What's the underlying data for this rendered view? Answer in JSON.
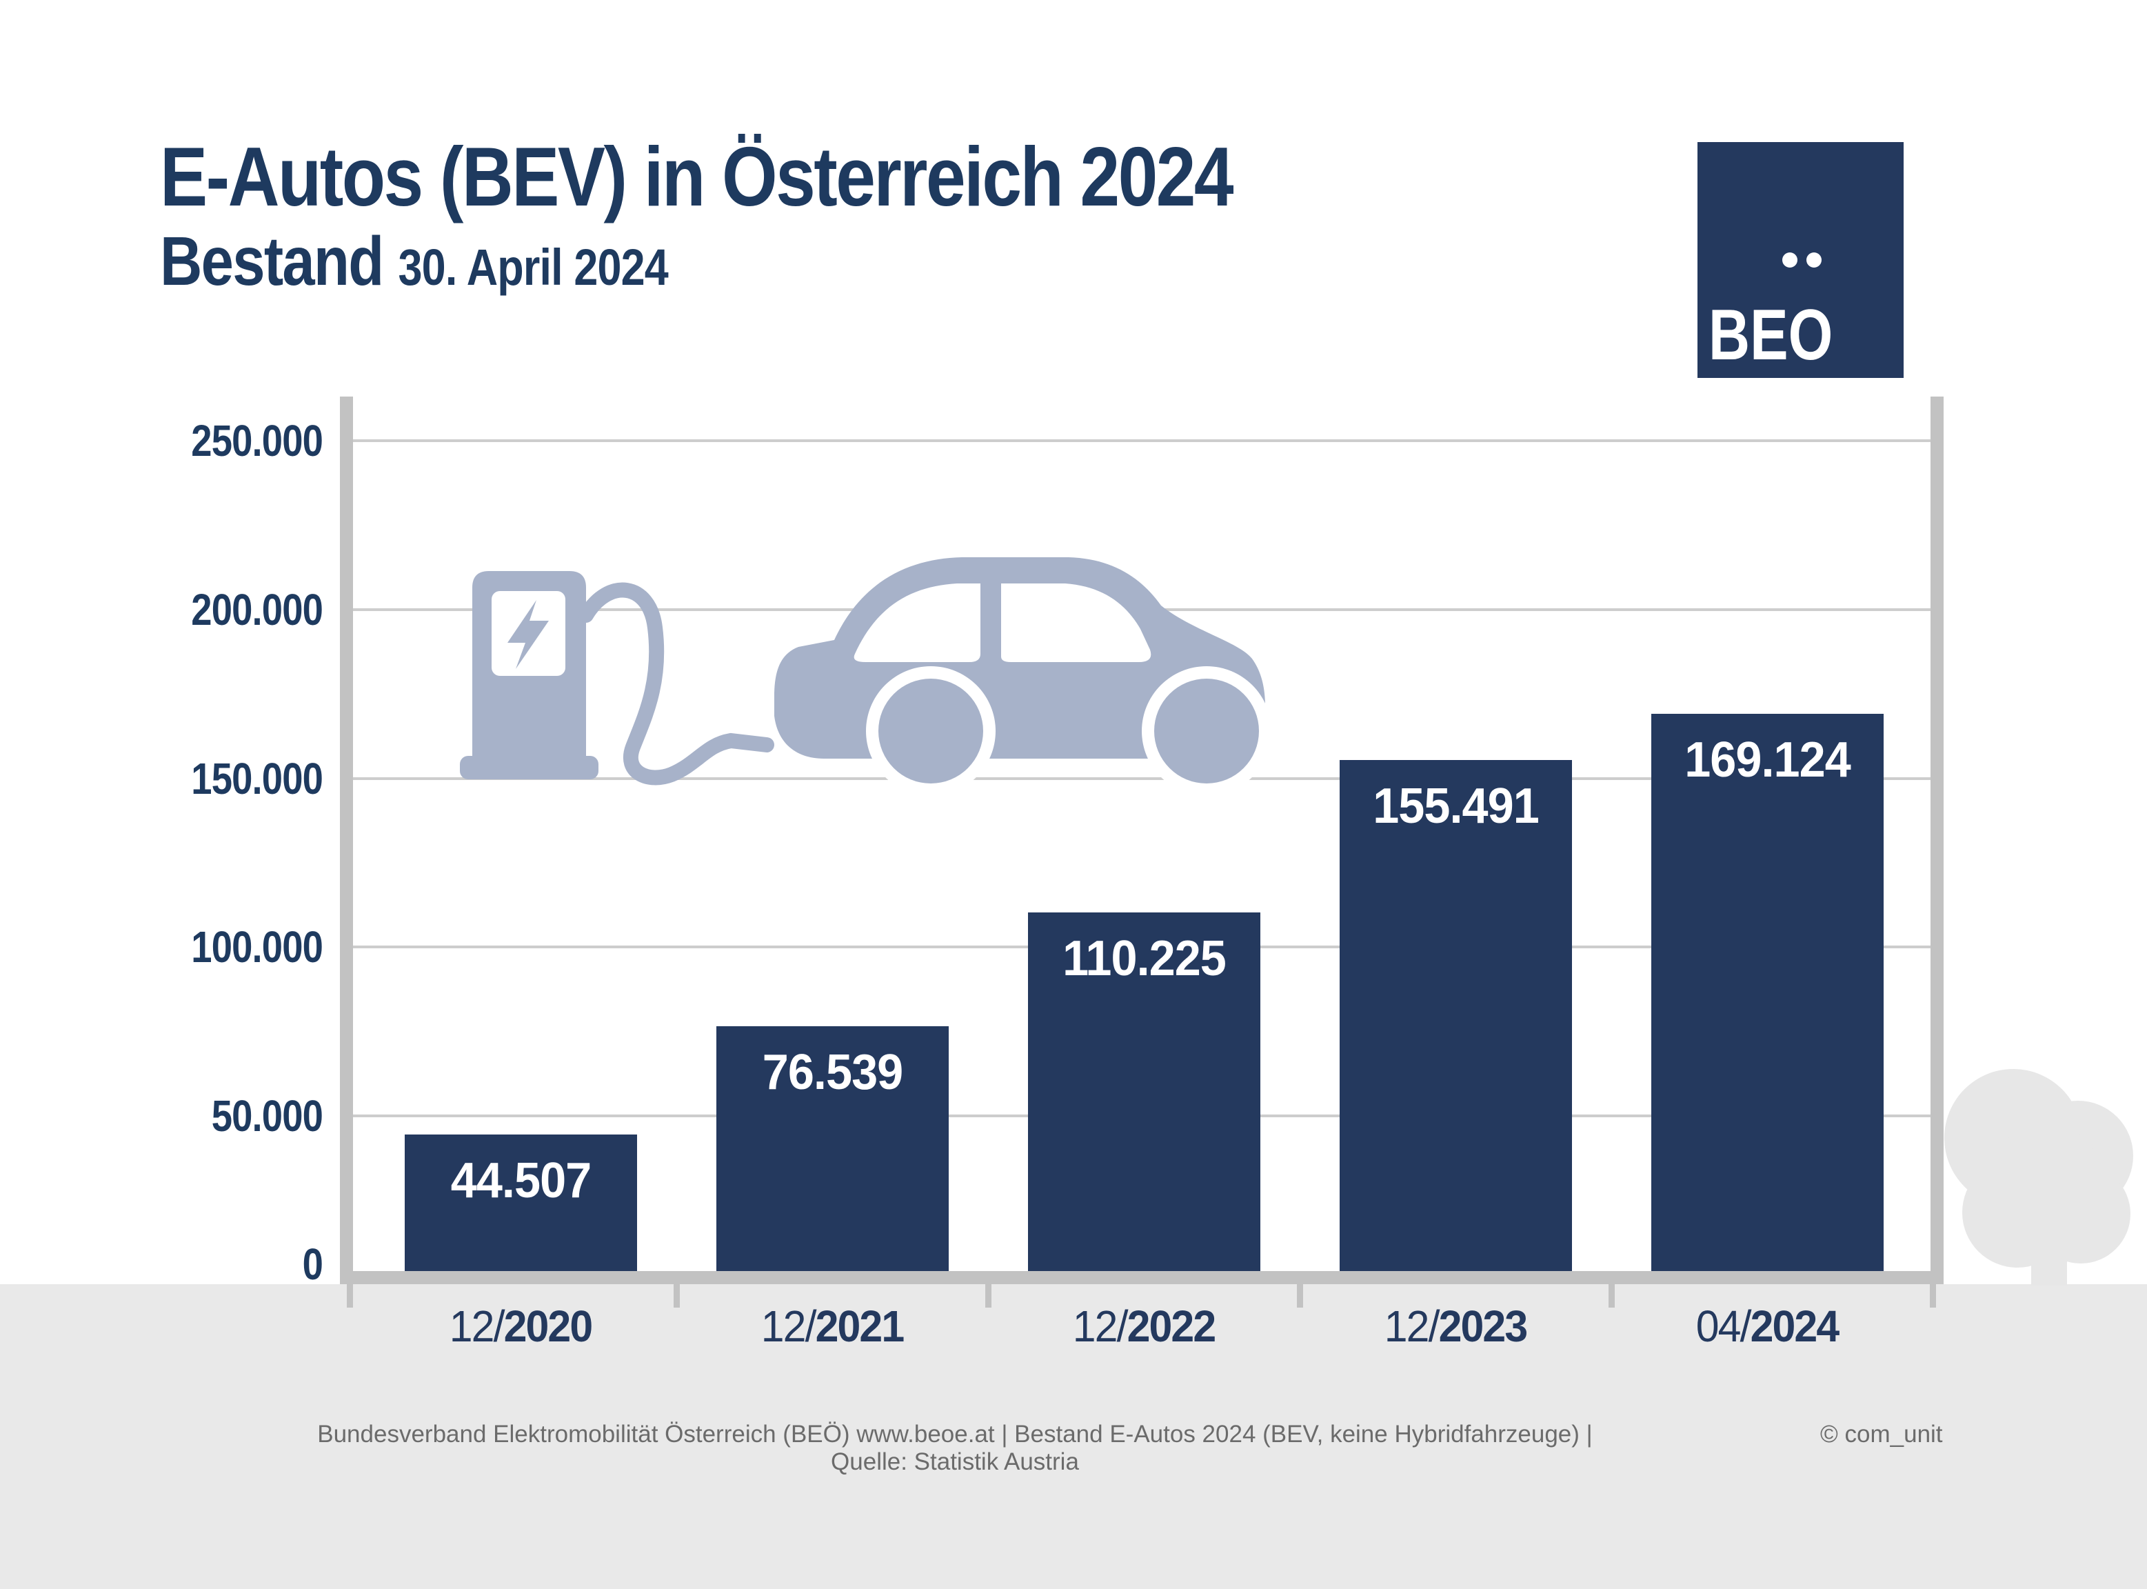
{
  "header": {
    "title": "E-Autos (BEV) in Österreich 2024",
    "subtitle": "Bestand",
    "subtitle_date": "30. April 2024"
  },
  "logo": {
    "text": "BEO",
    "icon": "two-dots-umlaut-icon"
  },
  "chart_data": {
    "type": "bar",
    "title": "E-Autos (BEV) in Österreich 2024",
    "subtitle": "Bestand 30. April 2024",
    "categories": [
      "12/2020",
      "12/2021",
      "12/2022",
      "12/2023",
      "04/2024"
    ],
    "category_parts": [
      {
        "prefix": "12/",
        "year": "2020"
      },
      {
        "prefix": "12/",
        "year": "2021"
      },
      {
        "prefix": "12/",
        "year": "2022"
      },
      {
        "prefix": "12/",
        "year": "2023"
      },
      {
        "prefix": "04/",
        "year": "2024"
      }
    ],
    "values": [
      44507,
      76539,
      110225,
      155491,
      169124
    ],
    "value_labels": [
      "44.507",
      "76.539",
      "110.225",
      "155.491",
      "169.124"
    ],
    "y_ticks": [
      {
        "label": "250.000",
        "value": 250000
      },
      {
        "label": "200.000",
        "value": 200000
      },
      {
        "label": "150.000",
        "value": 150000
      },
      {
        "label": "100.000",
        "value": 100000
      },
      {
        "label": "50.000",
        "value": 50000
      },
      {
        "label": "0",
        "value": 0
      }
    ],
    "ylim": [
      0,
      250000
    ],
    "grid": true,
    "legend_position": "none",
    "bar_value_label_position": "inside-top"
  },
  "decor": {
    "charging_icon": "ev-charging-station-and-car-icon",
    "tree_icon": "tree-icon"
  },
  "footer": {
    "source_line": "Bundesverband Elektromobilität Österreich (BEÖ) www.beoe.at | Bestand E-Autos 2024 (BEV, keine Hybridfahrzeuge) | Quelle: Statistik Austria",
    "credit": "© com_unit"
  },
  "colors": {
    "bar": "#24395e",
    "text_navy": "#1e3a5f",
    "graphic_light_blue": "#a7b2c9",
    "gridline": "#cdcdcd",
    "axis": "#c2c2c2",
    "bottom_band": "#e9e9e9",
    "tree": "#e7e7e7",
    "value_label": "#ffffff",
    "footer_text": "#6b6b6b"
  }
}
